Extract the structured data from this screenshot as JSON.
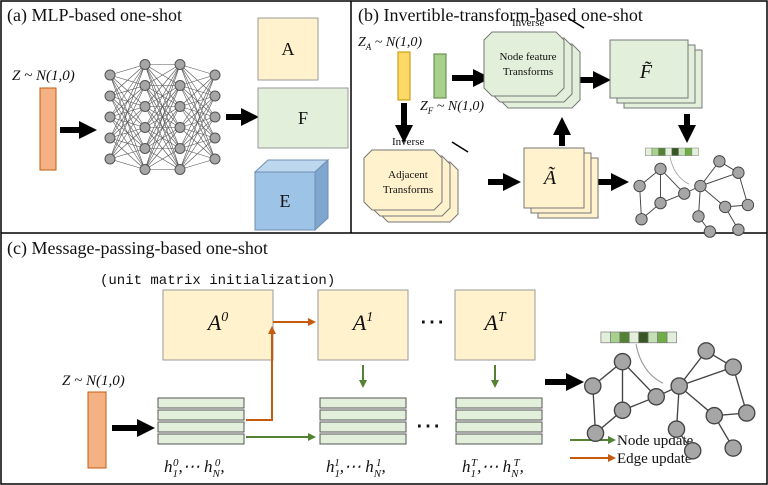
{
  "panels": [
    {
      "title": "(a) MLP-based one-shot",
      "noise": "Z ~ N(1,0)",
      "outputs": [
        "A",
        "F",
        "E"
      ]
    },
    {
      "title": "(b) Invertible-transform-based one-shot",
      "noise_a": {
        "base": "Z",
        "sub": "A",
        "rest": " ~ N(1,0)"
      },
      "noise_f": {
        "base": "Z",
        "sub": "F",
        "rest": " ~ N(1,0)"
      },
      "node_transform": {
        "label": "Inverse",
        "lines": [
          "Node feature",
          "Transforms"
        ]
      },
      "adjacent_transform": {
        "label": "Inverse",
        "lines": [
          "Adjacent",
          "Transforms"
        ]
      },
      "features": "F̃",
      "adjacency": "Ã"
    },
    {
      "title": "(c) Message-passing-based one-shot",
      "note": "(unit matrix initialization)",
      "noise": "Z ~ N(1,0)",
      "adjacency": [
        {
          "base": "A",
          "sup": "0"
        },
        {
          "base": "A",
          "sup": "1"
        },
        {
          "base": "A",
          "sup": "T"
        }
      ],
      "ellipsis": "⋯",
      "hidden": [
        {
          "h": "h",
          "sub": "1",
          "sup": "0",
          "mid": ",⋯ h",
          "sub2": "N",
          "sup2": "0",
          "end": ","
        },
        {
          "h": "h",
          "sub": "1",
          "sup": "1",
          "mid": ",⋯ h",
          "sub2": "N",
          "sup2": "1",
          "end": ","
        },
        {
          "h": "h",
          "sub": "1",
          "sup": "T",
          "mid": ",⋯ h",
          "sub2": "N",
          "sup2": "T",
          "end": ","
        }
      ],
      "legend": [
        "Node update",
        "Edge update"
      ]
    }
  ]
}
